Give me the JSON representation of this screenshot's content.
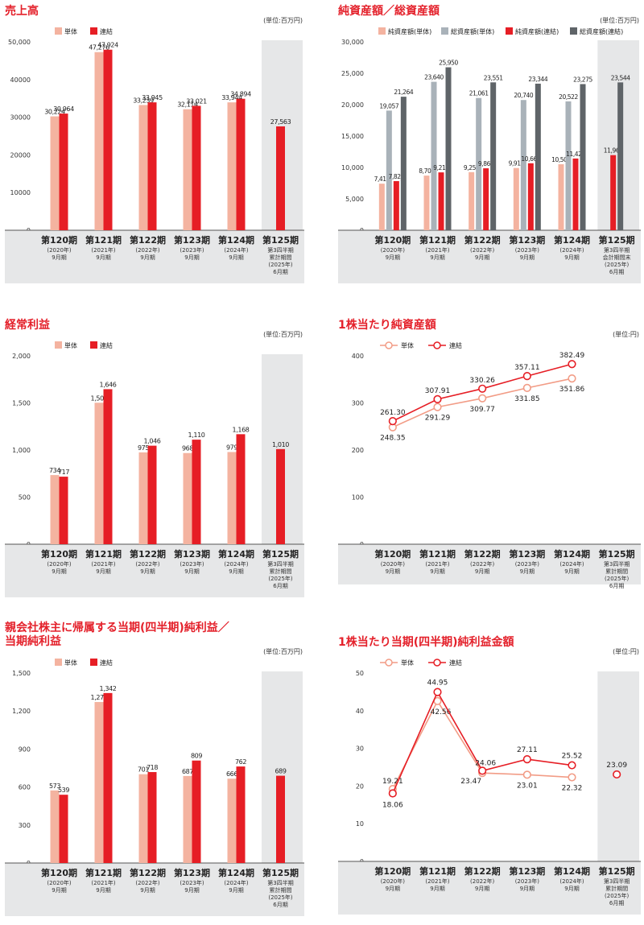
{
  "colors": {
    "title": "#e4212b",
    "standalone": "#f4b3a0",
    "consolidated": "#e61e25",
    "net_assets_single": "#f4b3a0",
    "total_assets_single": "#a9b2b9",
    "net_assets_cons": "#e61e25",
    "total_assets_cons": "#5f6468",
    "axis_band": "#e6e7e8",
    "line_single": "#f29c86",
    "line_cons": "#e61e25"
  },
  "period_labels": [
    {
      "main": "第120期",
      "sub": [
        "(2020年)",
        "9月期"
      ]
    },
    {
      "main": "第121期",
      "sub": [
        "(2021年)",
        "9月期"
      ]
    },
    {
      "main": "第122期",
      "sub": [
        "(2022年)",
        "9月期"
      ]
    },
    {
      "main": "第123期",
      "sub": [
        "(2023年)",
        "9月期"
      ]
    },
    {
      "main": "第124期",
      "sub": [
        "(2024年)",
        "9月期"
      ]
    },
    {
      "main": "第125期",
      "sub": [
        "第3四半期",
        "累計期間",
        "(2025年)",
        "6月期"
      ]
    }
  ],
  "period_labels_assets_125": {
    "main": "第125期",
    "sub": [
      "第3四半期",
      "会計期間末",
      "(2025年)",
      "6月期"
    ]
  },
  "chart_data": [
    {
      "id": "sales",
      "type": "bar",
      "title": "売上高",
      "unit": "(単位:百万円)",
      "ylim": [
        0,
        50000
      ],
      "yticks": [
        "0",
        "10000",
        "20000",
        "30000",
        "40000",
        "50,000"
      ],
      "ytick_values": [
        0,
        10000,
        20000,
        30000,
        40000,
        50000
      ],
      "categories": [
        "第120期",
        "第121期",
        "第122期",
        "第123期",
        "第124期",
        "第125期"
      ],
      "series": [
        {
          "name": "単体",
          "values": [
            30224,
            47276,
            33239,
            32114,
            33944,
            null
          ],
          "labels": [
            "30,224",
            "47,276",
            "33,239",
            "32,114",
            "33,944",
            ""
          ]
        },
        {
          "name": "連結",
          "values": [
            30964,
            47924,
            33945,
            33021,
            34894,
            27563
          ],
          "labels": [
            "30,964",
            "47,924",
            "33,945",
            "33,021",
            "34,894",
            "27,563"
          ]
        }
      ]
    },
    {
      "id": "assets",
      "type": "bar",
      "title": "純資産額／総資産額",
      "unit": "(単位:百万円)",
      "ylim": [
        0,
        30000
      ],
      "yticks": [
        "0",
        "5,000",
        "10,000",
        "15,000",
        "20,000",
        "25,000",
        "30,000"
      ],
      "ytick_values": [
        0,
        5000,
        10000,
        15000,
        20000,
        25000,
        30000
      ],
      "categories": [
        "第120期",
        "第121期",
        "第122期",
        "第123期",
        "第124期",
        "第125期"
      ],
      "series": [
        {
          "name": "純資産額(単体)",
          "values": [
            7418,
            8701,
            9253,
            9911,
            10509,
            null
          ],
          "labels": [
            "7,418",
            "8,701",
            "9,253",
            "9,911",
            "10,509",
            ""
          ]
        },
        {
          "name": "総資産額(単体)",
          "values": [
            19057,
            23640,
            21061,
            20740,
            20522,
            null
          ],
          "labels": [
            "19,057",
            "23,640",
            "21,061",
            "20,740",
            "20,522",
            ""
          ]
        },
        {
          "name": "純資産額(連結)",
          "values": [
            7825,
            9214,
            9865,
            10666,
            11424,
            11961
          ],
          "labels": [
            "7,825",
            "9,214",
            "9,865",
            "10,666",
            "11,424",
            "11,961"
          ]
        },
        {
          "name": "総資産額(連結)",
          "values": [
            21264,
            25950,
            23551,
            23344,
            23275,
            23544
          ],
          "labels": [
            "21,264",
            "25,950",
            "23,551",
            "23,344",
            "23,275",
            "23,544"
          ]
        }
      ]
    },
    {
      "id": "ordinary",
      "type": "bar",
      "title": "経常利益",
      "unit": "(単位:百万円)",
      "ylim": [
        0,
        2000
      ],
      "yticks": [
        "0",
        "500",
        "1,000",
        "1,500",
        "2,000"
      ],
      "ytick_values": [
        0,
        500,
        1000,
        1500,
        2000
      ],
      "categories": [
        "第120期",
        "第121期",
        "第122期",
        "第123期",
        "第124期",
        "第125期"
      ],
      "series": [
        {
          "name": "単体",
          "values": [
            734,
            1502,
            975,
            968,
            979,
            null
          ],
          "labels": [
            "734",
            "1,502",
            "975",
            "968",
            "979",
            ""
          ]
        },
        {
          "name": "連結",
          "values": [
            717,
            1646,
            1046,
            1110,
            1168,
            1010
          ],
          "labels": [
            "717",
            "1,646",
            "1,046",
            "1,110",
            "1,168",
            "1,010"
          ]
        }
      ]
    },
    {
      "id": "bps",
      "type": "line",
      "title": "1株当たり純資産額",
      "unit": "(単位:円)",
      "ylim": [
        0,
        400
      ],
      "yticks": [
        "0",
        "100",
        "200",
        "300",
        "400"
      ],
      "ytick_values": [
        0,
        100,
        200,
        300,
        400
      ],
      "categories": [
        "第120期",
        "第121期",
        "第122期",
        "第123期",
        "第124期"
      ],
      "series": [
        {
          "name": "単体",
          "values": [
            248.35,
            291.29,
            309.77,
            331.85,
            351.86
          ],
          "labels": [
            "248.35",
            "291.29",
            "309.77",
            "331.85",
            "351.86"
          ]
        },
        {
          "name": "連結",
          "values": [
            261.3,
            307.91,
            330.26,
            357.11,
            382.49
          ],
          "labels": [
            "261.30",
            "307.91",
            "330.26",
            "357.11",
            "382.49"
          ]
        }
      ]
    },
    {
      "id": "netincome",
      "type": "bar",
      "title": "親会社株主に帰属する当期(四半期)純利益／\n当期純利益",
      "unit": "(単位:百万円)",
      "ylim": [
        0,
        1500
      ],
      "yticks": [
        "0",
        "300",
        "600",
        "900",
        "1,200",
        "1,500"
      ],
      "ytick_values": [
        0,
        300,
        600,
        900,
        1200,
        1500
      ],
      "categories": [
        "第120期",
        "第121期",
        "第122期",
        "第123期",
        "第124期",
        "第125期"
      ],
      "series": [
        {
          "name": "単体",
          "values": [
            573,
            1271,
            701,
            687,
            666,
            null
          ],
          "labels": [
            "573",
            "1,271",
            "701",
            "687",
            "666",
            ""
          ]
        },
        {
          "name": "連結",
          "values": [
            539,
            1342,
            718,
            809,
            762,
            689
          ],
          "labels": [
            "539",
            "1,342",
            "718",
            "809",
            "762",
            "689"
          ]
        }
      ]
    },
    {
      "id": "eps",
      "type": "line",
      "title": "1株当たり当期(四半期)純利益金額",
      "unit": "(単位:円)",
      "ylim": [
        0,
        50
      ],
      "yticks": [
        "0",
        "10",
        "20",
        "30",
        "40",
        "50"
      ],
      "ytick_values": [
        0,
        10,
        20,
        30,
        40,
        50
      ],
      "categories": [
        "第120期",
        "第121期",
        "第122期",
        "第123期",
        "第124期",
        "第125期"
      ],
      "series": [
        {
          "name": "単体",
          "values": [
            19.21,
            42.56,
            23.47,
            23.01,
            22.32,
            null
          ],
          "labels": [
            "19.21",
            "42.56",
            "23.47",
            "23.01",
            "22.32",
            ""
          ]
        },
        {
          "name": "連結",
          "values": [
            18.06,
            44.95,
            24.06,
            27.11,
            25.52,
            23.09
          ],
          "labels": [
            "18.06",
            "44.95",
            "24.06",
            "27.11",
            "25.52",
            "23.09"
          ]
        }
      ]
    }
  ]
}
